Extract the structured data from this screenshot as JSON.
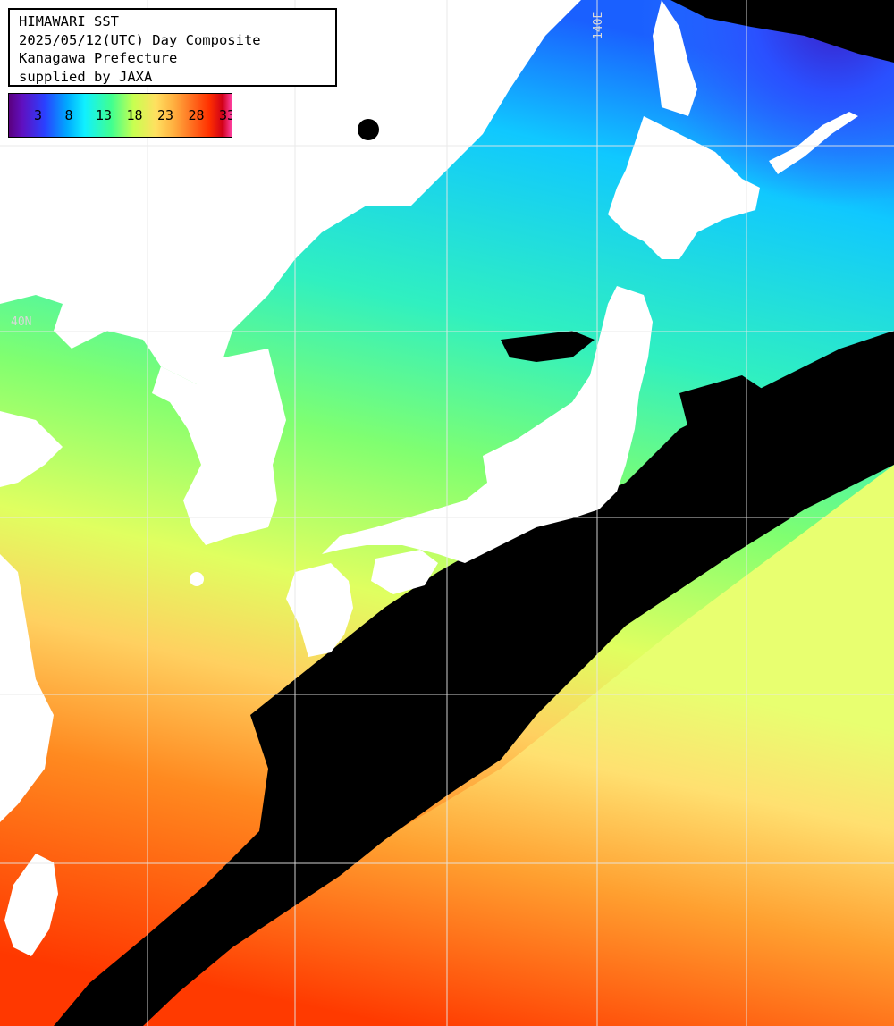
{
  "title": {
    "line1": "HIMAWARI SST",
    "line2": "2025/05/12(UTC) Day Composite",
    "line3": "Kanagawa Prefecture",
    "line4": "supplied by JAXA"
  },
  "legend": {
    "ticks": [
      "3",
      "8",
      "13",
      "18",
      "23",
      "28",
      "33"
    ]
  },
  "grid_labels": {
    "lon_140": "140E",
    "lat_40": "40N"
  },
  "colors": {
    "no_data": "#000000",
    "land": "#ffffff",
    "grid": "#e8e8e8",
    "cold_sea": "#2a3cff",
    "cool_sea": "#22d8ff",
    "mid_sea": "#70ff80",
    "warm_sea": "#ffe070",
    "hot_sea": "#ff4a00"
  }
}
